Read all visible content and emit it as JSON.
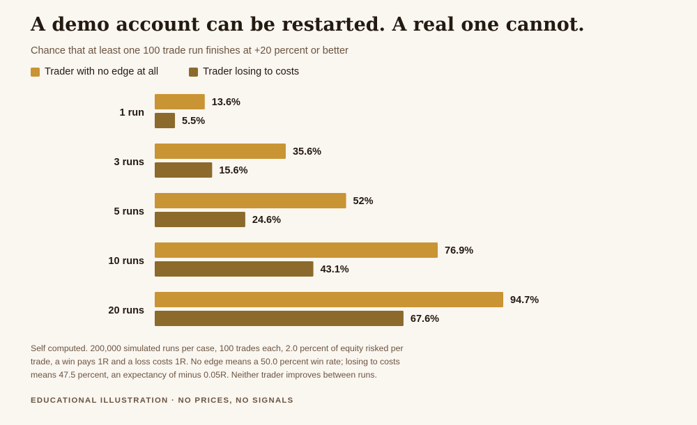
{
  "title": "A demo account can be restarted. A real one cannot.",
  "subtitle": "Chance that at least one 100 trade run finishes at +20 percent or better",
  "legend": [
    {
      "label": "Trader with no edge at all",
      "color": "#c99434"
    },
    {
      "label": "Trader losing to costs",
      "color": "#8b6a2b"
    }
  ],
  "chart_data": {
    "type": "bar",
    "orientation": "horizontal",
    "categories": [
      "1 run",
      "3 runs",
      "5 runs",
      "10 runs",
      "20 runs"
    ],
    "series": [
      {
        "name": "Trader with no edge at all",
        "values": [
          13.6,
          35.6,
          52,
          76.9,
          94.7
        ],
        "labels": [
          "13.6%",
          "35.6%",
          "52%",
          "76.9%",
          "94.7%"
        ],
        "color": "#c99434"
      },
      {
        "name": "Trader losing to costs",
        "values": [
          5.5,
          15.6,
          24.6,
          43.1,
          67.6
        ],
        "labels": [
          "5.5%",
          "15.6%",
          "24.6%",
          "43.1%",
          "67.6%"
        ],
        "color": "#8b6a2b"
      }
    ],
    "xlim": [
      0,
      100
    ],
    "grid": false,
    "legend_position": "top-left"
  },
  "note": "Self computed. 200,000 simulated runs per case, 100 trades each, 2.0 percent of equity risked per trade, a win pays 1R and a loss costs 1R. No edge means a 50.0 percent win rate; losing to costs means 47.5 percent, an expectancy of minus 0.05R. Neither trader improves between runs.",
  "footer": "EDUCATIONAL ILLUSTRATION · NO PRICES, NO SIGNALS"
}
